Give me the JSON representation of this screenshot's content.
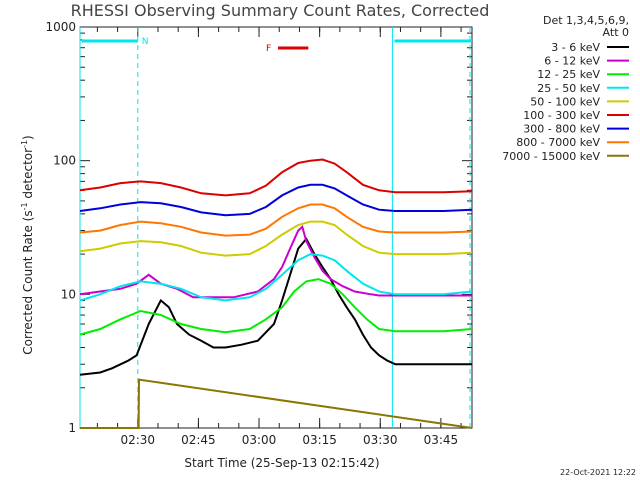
{
  "chart_data": {
    "type": "line",
    "title": "RHESSI Observing Summary Count Rates, Corrected",
    "xlabel": "Start Time (25-Sep-13 02:15:42)",
    "ylabel_main": "Corrected Count Rate (s",
    "ylabel_sup1": "-1",
    "ylabel_mid": " detector",
    "ylabel_sup2": "-1",
    "ylabel_end": ")",
    "y_scale": "log",
    "ylim": [
      1,
      1000
    ],
    "xlim_minutes": [
      0,
      97
    ],
    "x_ticks": [
      {
        "label": "02:30",
        "value": 14.3
      },
      {
        "label": "02:45",
        "value": 29.3
      },
      {
        "label": "03:00",
        "value": 44.3
      },
      {
        "label": "03:15",
        "value": 59.3
      },
      {
        "label": "03:30",
        "value": 74.3
      },
      {
        "label": "03:45",
        "value": 89.3
      }
    ],
    "y_ticks": [
      {
        "label": "1",
        "value": 1
      },
      {
        "label": "10",
        "value": 10
      },
      {
        "label": "100",
        "value": 100
      },
      {
        "label": "1000",
        "value": 1000
      }
    ],
    "legend_header": [
      "Det 1,3,4,5,6,9,",
      "Att 0"
    ],
    "legend_position": "top-right, outside plot",
    "series": [
      {
        "name": "3 - 6 keV",
        "color": "#000000",
        "x": [
          0,
          5,
          8,
          12,
          14,
          17,
          20,
          22,
          24,
          27,
          30,
          33,
          36,
          40,
          44,
          48,
          50,
          52,
          54,
          56,
          58,
          60,
          62,
          64,
          66,
          68,
          70,
          72,
          74,
          76,
          78,
          80,
          84,
          88,
          92,
          97
        ],
        "y": [
          2.5,
          2.6,
          2.8,
          3.2,
          3.5,
          6,
          9,
          8,
          6,
          5,
          4.5,
          4,
          4,
          4.2,
          4.5,
          6,
          9,
          14,
          22,
          26,
          20,
          16,
          13,
          10,
          8,
          6.5,
          5,
          4,
          3.5,
          3.2,
          3,
          3,
          3,
          3,
          3,
          3
        ]
      },
      {
        "name": "6 - 12 keV",
        "color": "#cc00cc",
        "x": [
          0,
          5,
          10,
          14,
          17,
          20,
          24,
          28,
          33,
          38,
          44,
          48,
          50,
          52,
          54,
          55,
          56,
          58,
          60,
          62,
          65,
          68,
          72,
          74,
          76,
          80,
          85,
          90,
          97
        ],
        "y": [
          10,
          10.5,
          11,
          12,
          14,
          12,
          11,
          9.5,
          9.5,
          9.5,
          10.5,
          13,
          16,
          22,
          30,
          32,
          25,
          19,
          15,
          13,
          11.5,
          10.5,
          10,
          9.8,
          9.8,
          9.8,
          9.8,
          9.8,
          9.8
        ]
      },
      {
        "name": "12 - 25 keV",
        "color": "#00ee00",
        "x": [
          0,
          5,
          10,
          15,
          20,
          25,
          30,
          36,
          42,
          46,
          50,
          53,
          56,
          59,
          62,
          65,
          68,
          71,
          74,
          78,
          84,
          90,
          97
        ],
        "y": [
          5,
          5.5,
          6.5,
          7.5,
          7,
          6,
          5.5,
          5.2,
          5.5,
          6.5,
          8,
          10.5,
          12.5,
          13,
          12,
          10,
          8,
          6.5,
          5.5,
          5.3,
          5.3,
          5.3,
          5.5
        ]
      },
      {
        "name": "25 - 50 keV",
        "color": "#00e5ee",
        "x": [
          0,
          5,
          10,
          15,
          20,
          25,
          30,
          36,
          42,
          46,
          50,
          54,
          57,
          60,
          63,
          66,
          70,
          74,
          78,
          84,
          90,
          97
        ],
        "y": [
          9,
          10,
          11.5,
          12.5,
          12,
          11,
          9.5,
          9,
          9.5,
          11,
          14,
          18,
          20,
          19.5,
          18,
          15,
          12,
          10.5,
          10,
          10,
          10,
          10.5
        ]
      },
      {
        "name": "50 - 100 keV",
        "color": "#cccc00",
        "x": [
          0,
          5,
          10,
          15,
          20,
          25,
          30,
          36,
          42,
          46,
          50,
          54,
          57,
          60,
          63,
          66,
          70,
          74,
          78,
          84,
          90,
          97
        ],
        "y": [
          21,
          22,
          24,
          25,
          24.5,
          23,
          20.5,
          19.5,
          20,
          23,
          28,
          33,
          35,
          35,
          33,
          28,
          23,
          20.5,
          20,
          20,
          20,
          20.5
        ]
      },
      {
        "name": "100 - 300 keV",
        "color": "#dd0000",
        "x": [
          0,
          5,
          10,
          15,
          20,
          25,
          30,
          36,
          42,
          46,
          50,
          54,
          57,
          60,
          63,
          66,
          70,
          74,
          78,
          84,
          90,
          97
        ],
        "y": [
          60,
          63,
          68,
          70,
          68,
          63,
          57,
          55,
          57,
          65,
          82,
          96,
          100,
          102,
          95,
          82,
          66,
          60,
          58,
          58,
          58,
          59
        ]
      },
      {
        "name": "300 - 800 keV",
        "color": "#0000dd",
        "x": [
          0,
          5,
          10,
          15,
          20,
          25,
          30,
          36,
          42,
          46,
          50,
          54,
          57,
          60,
          63,
          66,
          70,
          74,
          78,
          84,
          90,
          97
        ],
        "y": [
          42,
          44,
          47,
          49,
          48,
          45,
          41,
          39,
          40,
          45,
          55,
          63,
          66,
          66,
          62,
          55,
          47,
          43,
          42,
          42,
          42,
          43
        ]
      },
      {
        "name": "800 - 7000 keV",
        "color": "#ff7700",
        "x": [
          0,
          5,
          10,
          15,
          20,
          25,
          30,
          36,
          42,
          46,
          50,
          54,
          57,
          60,
          63,
          66,
          70,
          74,
          78,
          84,
          90,
          97
        ],
        "y": [
          29,
          30,
          33,
          35,
          34,
          32,
          29,
          27.5,
          28,
          31,
          38,
          44,
          47,
          47,
          44,
          38,
          32,
          29.5,
          29,
          29,
          29,
          29.5
        ]
      },
      {
        "name": "7000 - 15000 keV",
        "color": "#887700",
        "x": [
          0,
          14.5,
          14.6,
          97
        ],
        "y": [
          1,
          1,
          2.3,
          1
        ]
      }
    ],
    "attenuator_bars": [
      {
        "label": "N",
        "color": "#00e5ee",
        "x_start": 0,
        "x_end": 14.3
      },
      {
        "label": "",
        "color": "#00e5ee",
        "x_start": 77.3,
        "x_end": 97
      }
    ],
    "flare_marker": {
      "label": "F",
      "color": "#dd0000",
      "x_start": 49,
      "x_end": 56.5
    },
    "vlines": [
      {
        "style": "solid",
        "color": "#00e5ee",
        "x": 0
      },
      {
        "style": "dashed",
        "color": "#00e5ee",
        "x": 14.3
      },
      {
        "style": "solid",
        "color": "#00e5ee",
        "x": 77.3
      },
      {
        "style": "dashed",
        "color": "#00e5ee",
        "x": 96.5
      }
    ],
    "grid": false,
    "footer_stamp": "22-Oct-2021 12:22"
  }
}
